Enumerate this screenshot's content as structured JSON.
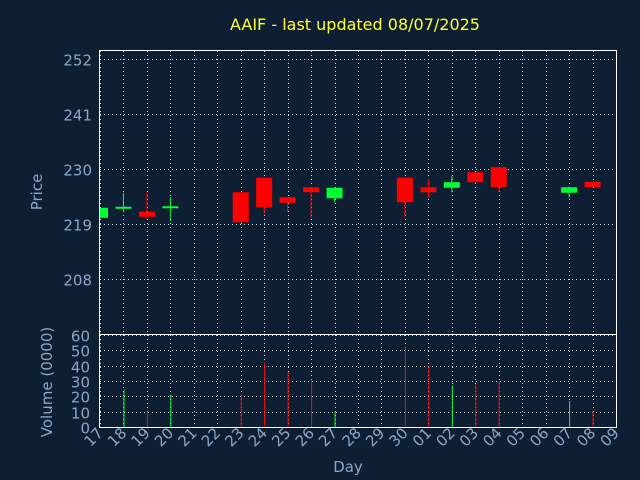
{
  "colors": {
    "background": "#0f1f33",
    "up": "#00ff33",
    "down": "#ff0000",
    "title": "#ffff33",
    "axis_text": "#8aa6c8",
    "grid": "#ffffff"
  },
  "chart_data": {
    "type": "candlestick",
    "title": "AAIF - last updated 08/07/2025",
    "xlabel": "Day",
    "ylabel_price": "Price",
    "ylabel_volume": "Volume (0000)",
    "price_ticks": [
      208,
      219,
      230,
      241,
      252
    ],
    "price_ylim": [
      197,
      253.5
    ],
    "volume_ticks": [
      0,
      10,
      20,
      30,
      40,
      50,
      60
    ],
    "volume_ylim": [
      0,
      60
    ],
    "grid": true,
    "categories": [
      "17",
      "18",
      "19",
      "20",
      "21",
      "22",
      "23",
      "24",
      "25",
      "26",
      "27",
      "28",
      "29",
      "30",
      "01",
      "02",
      "03",
      "04",
      "05",
      "06",
      "07",
      "08",
      "09"
    ],
    "candles": [
      {
        "day": "17",
        "open": 220.2,
        "close": 222.2,
        "high": 222.2,
        "low": 220.2,
        "volume": 0
      },
      {
        "day": "18",
        "open": 222.2,
        "close": 222.4,
        "high": 225.2,
        "low": 221.4,
        "volume": 24
      },
      {
        "day": "19",
        "open": 221.4,
        "close": 220.4,
        "high": 225.3,
        "low": 220.0,
        "volume": 10
      },
      {
        "day": "20",
        "open": 222.2,
        "close": 222.5,
        "high": 224.3,
        "low": 219.6,
        "volume": 21
      },
      {
        "day": "23",
        "open": 225.3,
        "close": 219.3,
        "high": 225.3,
        "low": 219.3,
        "volume": 21
      },
      {
        "day": "24",
        "open": 228.2,
        "close": 222.3,
        "high": 228.2,
        "low": 220.9,
        "volume": 42
      },
      {
        "day": "25",
        "open": 224.3,
        "close": 223.2,
        "high": 224.3,
        "low": 221.4,
        "volume": 36
      },
      {
        "day": "26",
        "open": 226.3,
        "close": 225.3,
        "high": 226.3,
        "low": 220.3,
        "volume": 31
      },
      {
        "day": "27",
        "open": 224.1,
        "close": 226.2,
        "high": 226.2,
        "low": 223.3,
        "volume": 10
      },
      {
        "day": "30",
        "open": 228.2,
        "close": 223.3,
        "high": 228.2,
        "low": 220.4,
        "volume": 52
      },
      {
        "day": "01",
        "open": 226.3,
        "close": 225.3,
        "high": 227.9,
        "low": 224.2,
        "volume": 40
      },
      {
        "day": "02",
        "open": 226.2,
        "close": 227.3,
        "high": 228.5,
        "low": 225.3,
        "volume": 27
      },
      {
        "day": "03",
        "open": 229.3,
        "close": 227.3,
        "high": 229.3,
        "low": 227.3,
        "volume": 28
      },
      {
        "day": "04",
        "open": 230.3,
        "close": 226.3,
        "high": 230.3,
        "low": 225.3,
        "volume": 30
      },
      {
        "day": "07",
        "open": 225.2,
        "close": 226.3,
        "high": 226.4,
        "low": 224.2,
        "volume": 17
      },
      {
        "day": "08",
        "open": 227.4,
        "close": 226.3,
        "high": 227.4,
        "low": 226.3,
        "volume": 10
      }
    ]
  }
}
